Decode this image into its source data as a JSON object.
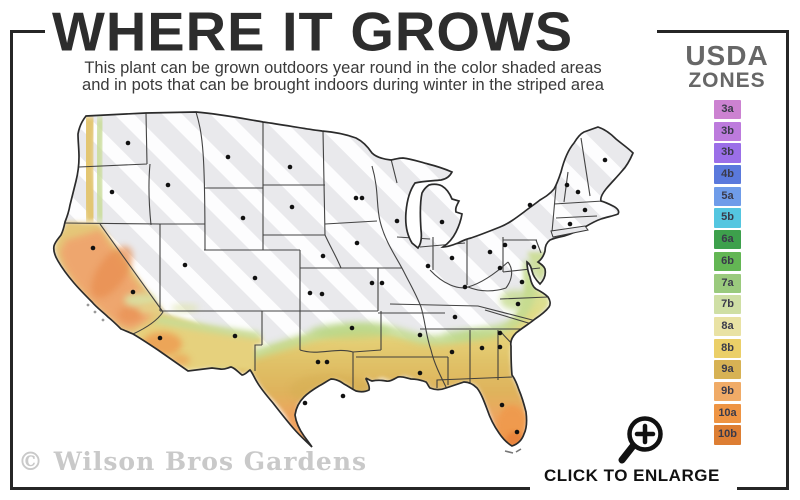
{
  "header": {
    "title": "WHERE IT GROWS",
    "subtitle_line1": "This plant can be grown outdoors year round in the color shaded areas",
    "subtitle_line2": "and in pots that can be brought indoors during winter in the striped area"
  },
  "legend": {
    "title_line1": "USDA",
    "title_line2": "ZONES",
    "zones": [
      {
        "label": "3a",
        "color": "#cc82d1"
      },
      {
        "label": "3b",
        "color": "#bd7bdd"
      },
      {
        "label": "3b",
        "color": "#9b6fe8"
      },
      {
        "label": "4b",
        "color": "#5a79dc"
      },
      {
        "label": "5a",
        "color": "#6f9ce9"
      },
      {
        "label": "5b",
        "color": "#54c6e0"
      },
      {
        "label": "6a",
        "color": "#3da04c"
      },
      {
        "label": "6b",
        "color": "#63b654"
      },
      {
        "label": "7a",
        "color": "#9aca7d"
      },
      {
        "label": "7b",
        "color": "#cfdfa5"
      },
      {
        "label": "8a",
        "color": "#e9e2a4"
      },
      {
        "label": "8b",
        "color": "#ebcf68"
      },
      {
        "label": "9a",
        "color": "#d7b254"
      },
      {
        "label": "9b",
        "color": "#f0ab67"
      },
      {
        "label": "10a",
        "color": "#ee9443"
      },
      {
        "label": "10b",
        "color": "#dd7e33"
      }
    ]
  },
  "map": {
    "striped_area_fill": "#e9e9ec",
    "stripe_color": "#ffffff",
    "outline_color": "#2b2b2b",
    "state_dots": [
      [
        128,
        143
      ],
      [
        112,
        192
      ],
      [
        93,
        248
      ],
      [
        133,
        292
      ],
      [
        168,
        185
      ],
      [
        228,
        157
      ],
      [
        290,
        167
      ],
      [
        243,
        218
      ],
      [
        185,
        265
      ],
      [
        255,
        278
      ],
      [
        160,
        338
      ],
      [
        235,
        336
      ],
      [
        292,
        207
      ],
      [
        323,
        256
      ],
      [
        310,
        293
      ],
      [
        322,
        294
      ],
      [
        352,
        328
      ],
      [
        318,
        362
      ],
      [
        327,
        362
      ],
      [
        305,
        403
      ],
      [
        343,
        396
      ],
      [
        356,
        198
      ],
      [
        362,
        198
      ],
      [
        357,
        243
      ],
      [
        372,
        283
      ],
      [
        382,
        283
      ],
      [
        420,
        335
      ],
      [
        420,
        373
      ],
      [
        397,
        221
      ],
      [
        428,
        266
      ],
      [
        452,
        352
      ],
      [
        442,
        222
      ],
      [
        452,
        258
      ],
      [
        490,
        252
      ],
      [
        465,
        287
      ],
      [
        455,
        317
      ],
      [
        482,
        348
      ],
      [
        500,
        347
      ],
      [
        530,
        205
      ],
      [
        505,
        245
      ],
      [
        534,
        247
      ],
      [
        500,
        268
      ],
      [
        522,
        282
      ],
      [
        518,
        304
      ],
      [
        500,
        333
      ],
      [
        502,
        405
      ],
      [
        517,
        432
      ],
      [
        605,
        160
      ],
      [
        567,
        185
      ],
      [
        578,
        192
      ],
      [
        585,
        210
      ],
      [
        570,
        224
      ]
    ]
  },
  "footer": {
    "watermark": "© Wilson Bros Gardens",
    "cta_label": "CLICK TO ENLARGE"
  },
  "icons": {
    "magnifier": "zoom-in-magnifier-icon"
  }
}
